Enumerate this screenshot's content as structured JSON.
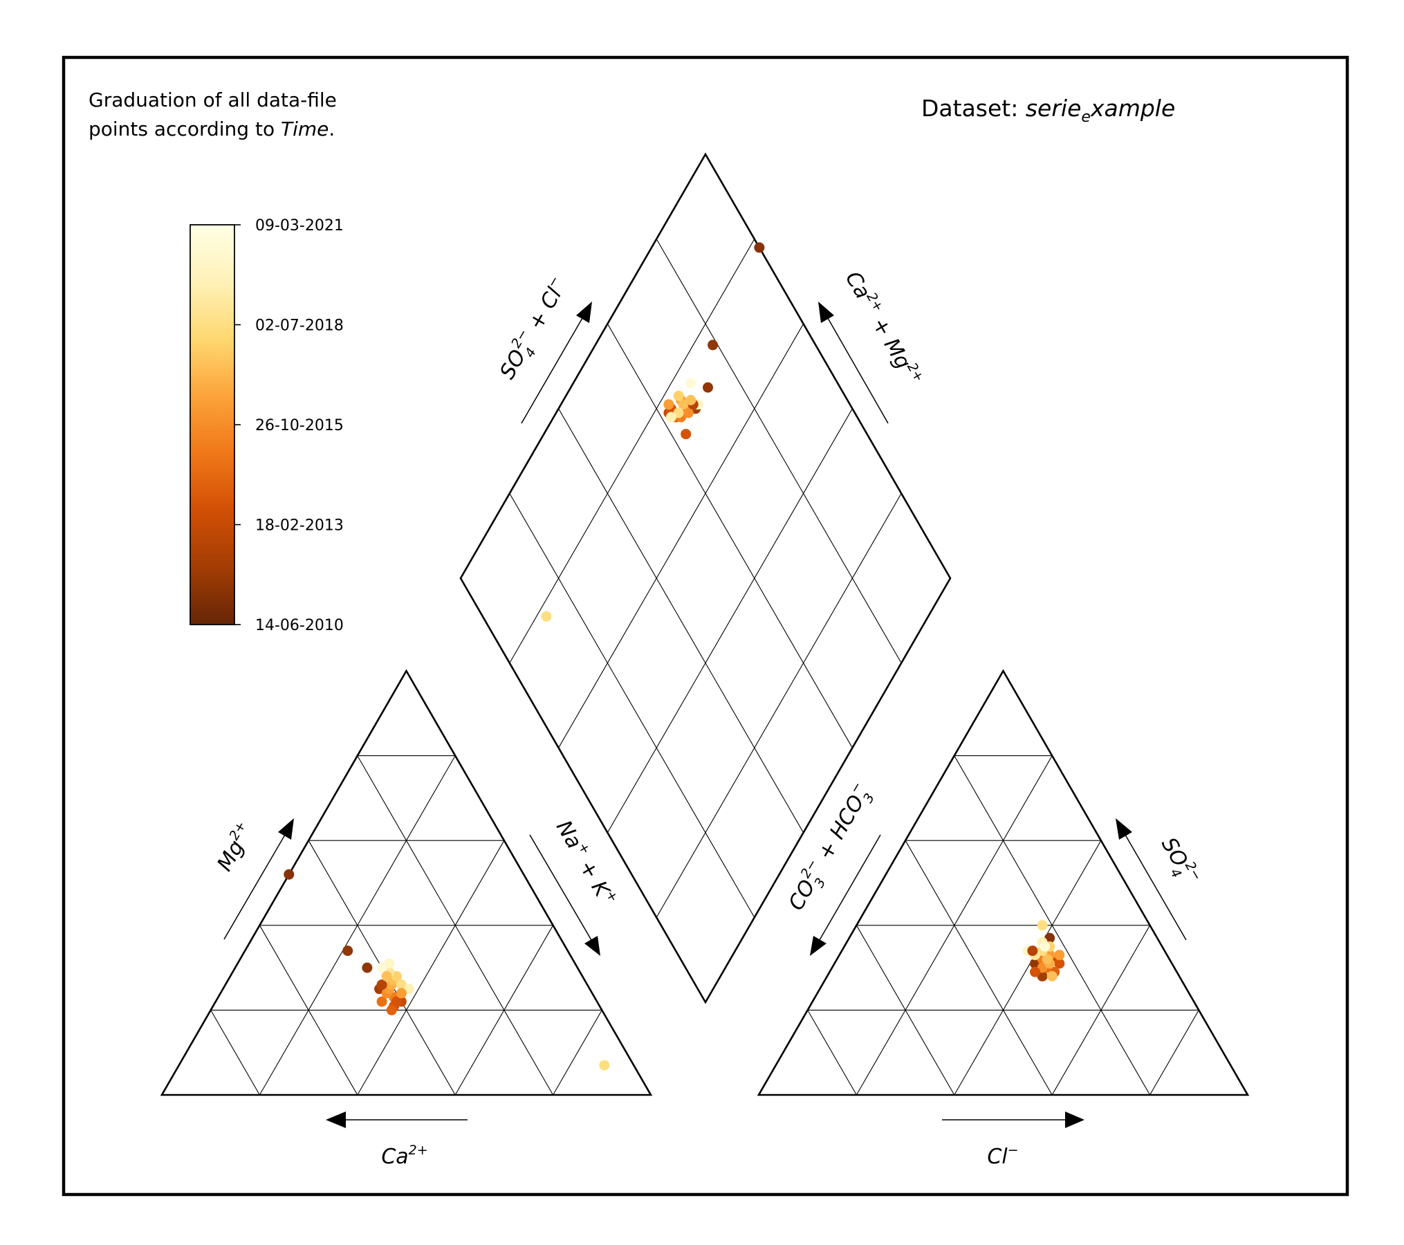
{
  "note": {
    "line1": "Graduation of all data-file",
    "line2_prefix": "points according to ",
    "line2_var": "Time",
    "line2_suffix": "."
  },
  "dataset": {
    "prefix": "Dataset: ",
    "name_main": "serie",
    "name_sub": "e",
    "name_rest": "xample"
  },
  "colorbar": {
    "ticks": [
      "09-03-2021",
      "02-07-2018",
      "26-10-2015",
      "18-02-2013",
      "14-06-2010"
    ],
    "colors": [
      "#ffffe5",
      "#fff1b8",
      "#fed870",
      "#fca33a",
      "#f07818",
      "#d24f05",
      "#a33d04",
      "#662506"
    ]
  },
  "chart_data": {
    "type": "scatter",
    "title": "",
    "axes": {
      "cation_left": {
        "main": "Mg",
        "sup": "2+"
      },
      "cation_right": {
        "base": "Na",
        "sup1": "+",
        "mid": " + K",
        "sup2": "+"
      },
      "cation_bottom": {
        "main": "Ca",
        "sup": "2+"
      },
      "diamond_left": {
        "base": "SO",
        "sub": "4",
        "sup": "2−",
        "rest": " + Cl",
        "sup2": "−"
      },
      "diamond_right": {
        "base": "Ca",
        "sup": "2+",
        "rest": " + Mg",
        "sup2": "2+"
      },
      "anion_left": {
        "b1": "CO",
        "sub1": "3",
        "sup1": "2−",
        "b2": " + HCO",
        "sub2": "3",
        "sup2": "−"
      },
      "anion_right": {
        "base": "SO",
        "sub": "4",
        "sup": "2−"
      },
      "anion_bottom": {
        "main": "Cl",
        "sup": "−"
      }
    },
    "color_scale": {
      "variable": "Time",
      "min": "14-06-2010",
      "max": "09-03-2021"
    },
    "points": [
      {
        "ca": 6,
        "mg": 7,
        "cl": 38,
        "so4": 40,
        "t": 0.75
      },
      {
        "ca": 48,
        "mg": 52,
        "cl": 41,
        "so4": 37,
        "t": 0.08
      },
      {
        "ca": 45,
        "mg": 34,
        "cl": 43,
        "so4": 33,
        "t": 0.1
      },
      {
        "ca": 43,
        "mg": 30,
        "cl": 41,
        "so4": 31,
        "t": 0.1
      },
      {
        "ca": 43,
        "mg": 25,
        "cl": 44,
        "so4": 28,
        "t": 0.15
      },
      {
        "ca": 40,
        "mg": 22,
        "cl": 45,
        "so4": 32,
        "t": 0.25
      },
      {
        "ca": 42,
        "mg": 21,
        "cl": 46,
        "so4": 31,
        "t": 0.3
      },
      {
        "ca": 43,
        "mg": 20,
        "cl": 46,
        "so4": 29,
        "t": 0.35
      },
      {
        "ca": 44,
        "mg": 22,
        "cl": 44,
        "so4": 30,
        "t": 0.4
      },
      {
        "ca": 41,
        "mg": 23,
        "cl": 42,
        "so4": 32,
        "t": 0.45
      },
      {
        "ca": 42,
        "mg": 24,
        "cl": 43,
        "so4": 30,
        "t": 0.5
      },
      {
        "ca": 41,
        "mg": 25,
        "cl": 43,
        "so4": 33,
        "t": 0.55
      },
      {
        "ca": 40,
        "mg": 26,
        "cl": 44,
        "so4": 31,
        "t": 0.6
      },
      {
        "ca": 39,
        "mg": 27,
        "cl": 43,
        "so4": 32,
        "t": 0.65
      },
      {
        "ca": 38,
        "mg": 28,
        "cl": 42,
        "so4": 35,
        "t": 0.7
      },
      {
        "ca": 38,
        "mg": 26,
        "cl": 41,
        "so4": 34,
        "t": 0.75
      },
      {
        "ca": 39,
        "mg": 29,
        "cl": 40,
        "so4": 33,
        "t": 0.8
      },
      {
        "ca": 37,
        "mg": 25,
        "cl": 40,
        "so4": 36,
        "t": 0.85
      },
      {
        "ca": 38,
        "mg": 31,
        "cl": 38,
        "so4": 34,
        "t": 0.9
      },
      {
        "ca": 40,
        "mg": 30,
        "cl": 41,
        "so4": 35,
        "t": 0.95
      },
      {
        "ca": 42,
        "mg": 26,
        "cl": 39,
        "so4": 34,
        "t": 0.2
      },
      {
        "ca": 41,
        "mg": 22,
        "cl": 42,
        "so4": 29,
        "t": 0.3
      },
      {
        "ca": 39,
        "mg": 24,
        "cl": 45,
        "so4": 33,
        "t": 0.55
      },
      {
        "ca": 40,
        "mg": 28,
        "cl": 46,
        "so4": 28,
        "t": 0.65
      }
    ]
  }
}
